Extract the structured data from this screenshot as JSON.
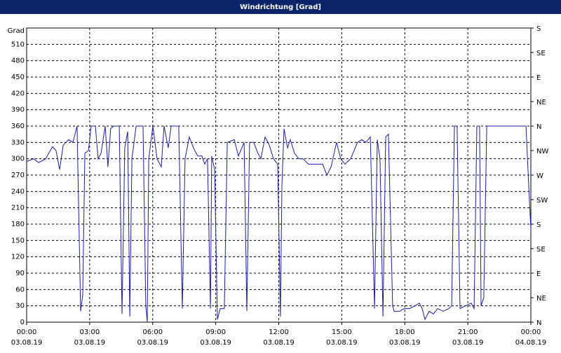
{
  "chart_data": {
    "type": "line",
    "title": "Windrichtung [Grad]",
    "xlim": [
      0,
      24
    ],
    "xticks": [
      {
        "value": 0,
        "label": "00:00"
      },
      {
        "value": 3,
        "label": "03:00"
      },
      {
        "value": 6,
        "label": "06:00"
      },
      {
        "value": 9,
        "label": "09:00"
      },
      {
        "value": 12,
        "label": "12:00"
      },
      {
        "value": 15,
        "label": "15:00"
      },
      {
        "value": 18,
        "label": "18:00"
      },
      {
        "value": 21,
        "label": "21:00"
      },
      {
        "value": 24,
        "label": "00:00"
      }
    ],
    "xtick_dates": [
      "03.08.19",
      "03.08.19",
      "03.08.19",
      "03.08.19",
      "03.08.19",
      "03.08.19",
      "03.08.19",
      "03.08.19",
      "04.08.19"
    ],
    "ylim": [
      0,
      540
    ],
    "yticks": [
      0,
      30,
      60,
      90,
      120,
      150,
      180,
      210,
      240,
      270,
      300,
      330,
      360,
      390,
      420,
      450,
      480,
      510,
      {
        "value": 540,
        "label": "Grad"
      }
    ],
    "y2lim": [
      0,
      540
    ],
    "y2ticks": [
      {
        "value": 0,
        "label": "N"
      },
      {
        "value": 45,
        "label": "NE"
      },
      {
        "value": 90,
        "label": "E"
      },
      {
        "value": 135,
        "label": "SE"
      },
      {
        "value": 180,
        "label": "S"
      },
      {
        "value": 225,
        "label": "SW"
      },
      {
        "value": 270,
        "label": "W"
      },
      {
        "value": 315,
        "label": "NW"
      },
      {
        "value": 360,
        "label": "N"
      },
      {
        "value": 405,
        "label": "NE"
      },
      {
        "value": 450,
        "label": "E"
      },
      {
        "value": 495,
        "label": "SE"
      },
      {
        "value": 540,
        "label": "S"
      }
    ],
    "grid": true,
    "color": "#1c1ca8",
    "x": [
      0,
      0.33,
      0.57,
      0.9,
      1.23,
      1.4,
      1.57,
      1.74,
      2.0,
      2.2,
      2.4,
      2.57,
      2.67,
      2.77,
      2.94,
      3.07,
      3.27,
      3.4,
      3.54,
      3.74,
      3.87,
      4.0,
      4.14,
      4.41,
      4.54,
      4.67,
      4.81,
      4.91,
      5.01,
      5.21,
      5.54,
      5.67,
      5.74,
      5.81,
      6.01,
      6.21,
      6.41,
      6.54,
      6.74,
      6.88,
      7.24,
      7.41,
      7.54,
      7.74,
      7.94,
      8.14,
      8.34,
      8.48,
      8.61,
      8.75,
      8.81,
      8.95,
      9.08,
      9.21,
      9.41,
      9.55,
      9.88,
      10.08,
      10.35,
      10.48,
      10.61,
      10.81,
      11.01,
      11.15,
      11.35,
      11.55,
      11.75,
      11.95,
      12.08,
      12.15,
      12.25,
      12.42,
      12.55,
      12.75,
      12.95,
      13.15,
      13.42,
      13.68,
      14.09,
      14.29,
      14.49,
      14.75,
      14.95,
      15.15,
      15.42,
      15.75,
      15.95,
      16.15,
      16.36,
      16.56,
      16.69,
      16.82,
      16.96,
      17.09,
      17.22,
      17.42,
      17.49,
      17.76,
      17.96,
      18.22,
      18.49,
      18.69,
      18.83,
      18.96,
      19.16,
      19.36,
      19.56,
      19.83,
      20.09,
      20.23,
      20.36,
      20.49,
      20.63,
      20.89,
      21.16,
      21.3,
      21.43,
      21.56,
      21.63,
      21.76,
      21.9,
      22.1,
      23.77,
      23.9,
      24
    ],
    "values": [
      295,
      300,
      293,
      300,
      322,
      315,
      280,
      325,
      335,
      330,
      360,
      20,
      50,
      310,
      315,
      360,
      360,
      300,
      310,
      360,
      285,
      355,
      360,
      360,
      15,
      320,
      350,
      10,
      300,
      360,
      360,
      30,
      0,
      300,
      360,
      300,
      285,
      360,
      320,
      360,
      360,
      25,
      300,
      340,
      320,
      305,
      305,
      290,
      300,
      25,
      305,
      280,
      5,
      25,
      25,
      330,
      335,
      305,
      330,
      20,
      330,
      330,
      310,
      300,
      340,
      325,
      300,
      290,
      10,
      250,
      355,
      320,
      335,
      310,
      300,
      300,
      290,
      290,
      290,
      270,
      285,
      330,
      300,
      290,
      300,
      330,
      335,
      330,
      340,
      25,
      335,
      300,
      10,
      340,
      345,
      30,
      20,
      20,
      25,
      25,
      30,
      35,
      25,
      5,
      20,
      15,
      25,
      20,
      25,
      30,
      360,
      360,
      25,
      30,
      35,
      25,
      360,
      360,
      30,
      45,
      360,
      360,
      360,
      250,
      170
    ]
  }
}
